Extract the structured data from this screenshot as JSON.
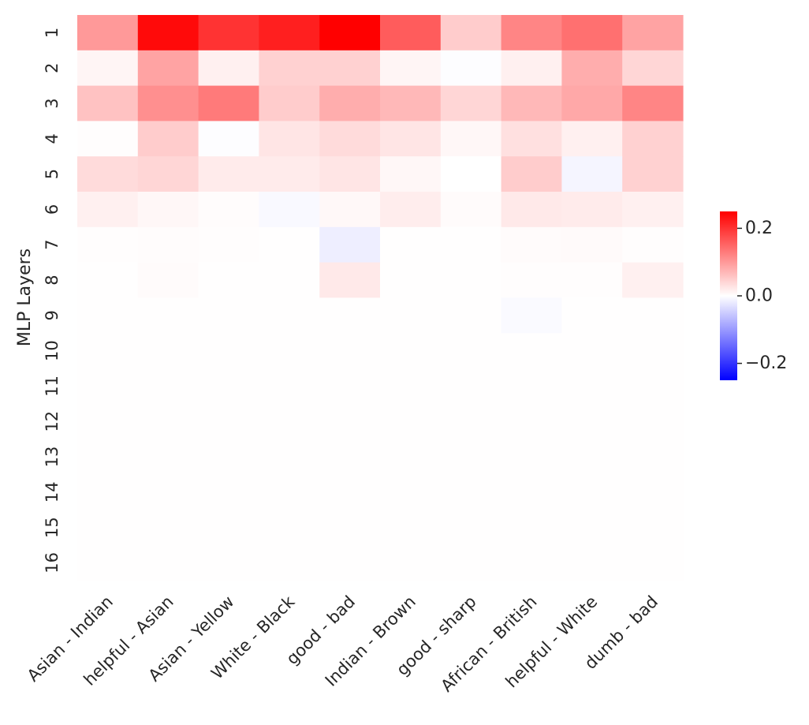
{
  "chart_data": {
    "type": "heatmap",
    "title": "",
    "xlabel": "",
    "ylabel": "MLP Layers",
    "categories": [
      "Asian - Indian",
      "helpful - Asian",
      "Asian - Yellow",
      "White - Black",
      "good - bad",
      "Indian - Brown",
      "good - sharp",
      "African - British",
      "helpful - White",
      "dumb - bad"
    ],
    "rows": [
      "1",
      "2",
      "3",
      "4",
      "5",
      "6",
      "7",
      "8",
      "9",
      "10",
      "11",
      "12",
      "13",
      "14",
      "15",
      "16"
    ],
    "values": [
      [
        0.1,
        0.24,
        0.2,
        0.22,
        0.25,
        0.16,
        0.05,
        0.12,
        0.14,
        0.09
      ],
      [
        0.01,
        0.09,
        0.015,
        0.045,
        0.045,
        0.01,
        -0.002,
        0.015,
        0.08,
        0.04
      ],
      [
        0.06,
        0.11,
        0.13,
        0.05,
        0.08,
        0.07,
        0.04,
        0.07,
        0.085,
        0.12
      ],
      [
        0.002,
        0.05,
        -0.002,
        0.025,
        0.035,
        0.025,
        0.008,
        0.03,
        0.015,
        0.045
      ],
      [
        0.035,
        0.04,
        0.02,
        0.02,
        0.025,
        0.008,
        0.0,
        0.05,
        -0.01,
        0.045
      ],
      [
        0.015,
        0.008,
        0.003,
        -0.006,
        0.007,
        0.018,
        0.004,
        0.022,
        0.02,
        0.015
      ],
      [
        0.002,
        0.003,
        0.002,
        0.001,
        -0.017,
        0.001,
        0.001,
        0.004,
        0.005,
        0.002
      ],
      [
        0.001,
        0.004,
        0.001,
        0.001,
        0.022,
        0.001,
        0.001,
        0.002,
        0.002,
        0.015
      ],
      [
        0.001,
        0.001,
        0.001,
        0.001,
        0.001,
        0.001,
        0.001,
        -0.005,
        0.001,
        0.001
      ],
      [
        0.001,
        0.001,
        0.001,
        0.001,
        0.001,
        0.001,
        0.001,
        0.001,
        0.001,
        0.001
      ],
      [
        0.001,
        0.001,
        0.001,
        0.001,
        0.001,
        0.001,
        0.001,
        0.001,
        0.001,
        0.001
      ],
      [
        0.001,
        0.001,
        0.001,
        0.001,
        0.001,
        0.001,
        0.001,
        0.001,
        0.001,
        0.001
      ],
      [
        0.001,
        0.001,
        0.001,
        0.001,
        0.001,
        0.001,
        0.001,
        0.001,
        0.001,
        0.001
      ],
      [
        0.001,
        0.001,
        0.001,
        0.001,
        0.001,
        0.001,
        0.001,
        0.001,
        0.001,
        0.001
      ],
      [
        0.001,
        0.001,
        0.001,
        0.001,
        0.001,
        0.001,
        0.001,
        0.001,
        0.001,
        0.001
      ],
      [
        0.001,
        0.001,
        0.001,
        0.001,
        0.001,
        0.001,
        0.001,
        0.001,
        0.001,
        0.001
      ]
    ],
    "colormap": "bwr",
    "colors": {
      "low": "#0000ff",
      "mid": "#ffffff",
      "high": "#ff0000"
    },
    "vmin": -0.25,
    "vmax": 0.25,
    "colorbar": {
      "ticks": [
        0.2,
        0.0,
        -0.2
      ],
      "tick_labels": [
        "0.2",
        "0.0",
        "−0.2"
      ],
      "placement": "right"
    },
    "grid": false
  }
}
